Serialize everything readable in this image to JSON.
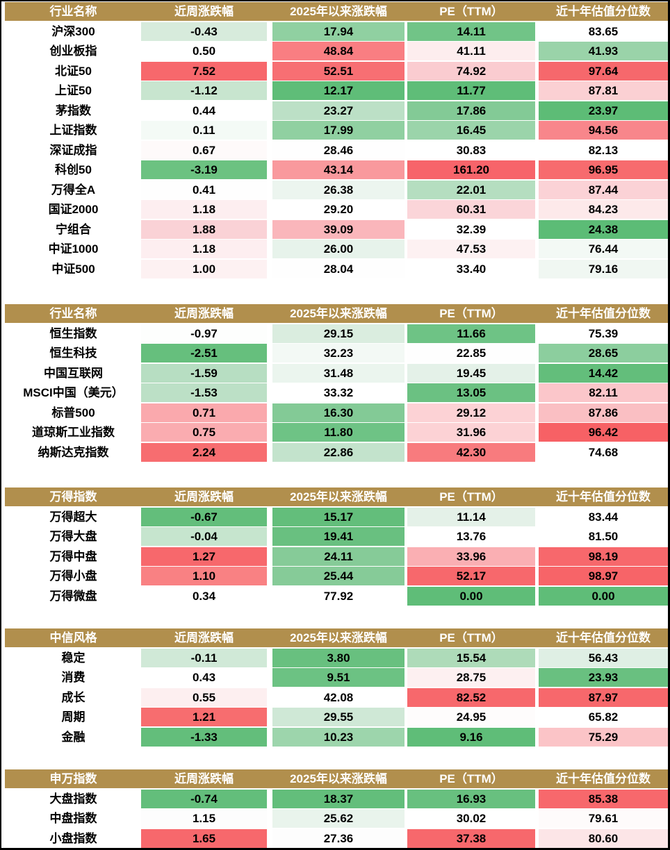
{
  "palette": {
    "header_bg": "#B18F4D",
    "header_text": "#FFFFFF",
    "body_text": "#000000",
    "border": "#000000",
    "heat_scale": {
      "low": "#63BE7B",
      "mid": "#FFFFFF",
      "high": "#F8696B"
    }
  },
  "value_columns": [
    "近周涨跌幅",
    "2025年以来涨跌幅",
    "PE（TTM）",
    "近十年估值分位数"
  ],
  "chart_data": [
    {
      "type": "table",
      "title": "行业名称",
      "columns": [
        "行业名称",
        "近周涨跌幅",
        "2025年以来涨跌幅",
        "PE（TTM）",
        "近十年估值分位数"
      ],
      "rows": [
        [
          "沪深300",
          -0.43,
          17.94,
          14.11,
          83.65
        ],
        [
          "创业板指",
          0.5,
          48.84,
          41.11,
          41.93
        ],
        [
          "北证50",
          7.52,
          52.51,
          74.92,
          97.64
        ],
        [
          "上证50",
          -1.12,
          12.17,
          11.77,
          87.81
        ],
        [
          "茅指数",
          0.44,
          23.27,
          17.86,
          23.97
        ],
        [
          "上证指数",
          0.11,
          17.99,
          16.45,
          94.56
        ],
        [
          "深证成指",
          0.67,
          28.46,
          30.83,
          82.13
        ],
        [
          "科创50",
          -3.19,
          43.14,
          161.2,
          96.95
        ],
        [
          "万得全A",
          0.41,
          26.38,
          22.01,
          87.44
        ],
        [
          "国证2000",
          1.18,
          29.2,
          60.31,
          84.23
        ],
        [
          "宁组合",
          1.88,
          39.09,
          32.39,
          24.38
        ],
        [
          "中证1000",
          1.18,
          26.0,
          47.53,
          76.44
        ],
        [
          "中证500",
          1.0,
          28.04,
          33.4,
          79.16
        ]
      ],
      "cell_colors": [
        [
          "#D7EBDC",
          "#90D0A1",
          "#71C487",
          "#FFFFFF"
        ],
        [
          "#FFFFFF",
          "#F97E82",
          "#FDEDEE",
          "#9AD3A9"
        ],
        [
          "#F7686C",
          "#F76F73",
          "#FACCD0",
          "#F6686C"
        ],
        [
          "#C8E5CF",
          "#5FBD78",
          "#5FBD78",
          "#FBD0D3"
        ],
        [
          "#FFFFFF",
          "#BCE0C6",
          "#83CA96",
          "#5DBC76"
        ],
        [
          "#F4FAF6",
          "#90D0A1",
          "#9BD4AA",
          "#F8868B"
        ],
        [
          "#FEFAFA",
          "#FEFEFE",
          "#FFFFFF",
          "#FFFFFF"
        ],
        [
          "#6CC281",
          "#F9999D",
          "#F7646A",
          "#F76B6E"
        ],
        [
          "#FEFEFE",
          "#ECF5EF",
          "#B5DEC0",
          "#FBD2D6"
        ],
        [
          "#FDEEF0",
          "#FFFFFF",
          "#FBD5D9",
          "#FDE9EA"
        ],
        [
          "#FAD2D6",
          "#FAB6BB",
          "#FFFFFF",
          "#5CBC76"
        ],
        [
          "#FDEEF0",
          "#E7F3EB",
          "#FDF1F2",
          "#F3F9F5"
        ],
        [
          "#FDF1F2",
          "#FEFEFE",
          "#FFFFFF",
          "#F0F7F2"
        ]
      ]
    },
    {
      "type": "table",
      "title": "行业名称",
      "columns": [
        "行业名称",
        "近周涨跌幅",
        "2025年以来涨跌幅",
        "PE（TTM）",
        "近十年估值分位数"
      ],
      "rows": [
        [
          "恒生指数",
          -0.97,
          29.15,
          11.66,
          75.39
        ],
        [
          "恒生科技",
          -2.51,
          32.23,
          22.85,
          28.65
        ],
        [
          "中国互联网",
          -1.59,
          31.48,
          19.45,
          14.42
        ],
        [
          "MSCI中国（美元）",
          -1.53,
          33.32,
          13.05,
          82.11
        ],
        [
          "标普500",
          0.71,
          16.3,
          29.12,
          87.86
        ],
        [
          "道琼斯工业指数",
          0.75,
          11.8,
          31.96,
          96.42
        ],
        [
          "纳斯达克指数",
          2.24,
          22.86,
          42.3,
          74.68
        ]
      ],
      "cell_colors": [
        [
          "#FDFEFD",
          "#DAEDDF",
          "#6EC385",
          "#FFFFFF"
        ],
        [
          "#66BF7D",
          "#F3F9F5",
          "#FEFEFE",
          "#8CCE9E"
        ],
        [
          "#B7DEC2",
          "#EBF5EE",
          "#E4F1E8",
          "#63BE7B"
        ],
        [
          "#BCE0C6",
          "#FFFFFF",
          "#6BC182",
          "#FBC6CA"
        ],
        [
          "#FAA9AD",
          "#83CA96",
          "#FCD2D5",
          "#FABFC3"
        ],
        [
          "#FAACB0",
          "#6EC385",
          "#FCD2D5",
          "#F76165"
        ],
        [
          "#F76D70",
          "#C3E3CC",
          "#F87B7E",
          "#FFFFFF"
        ]
      ]
    },
    {
      "type": "table",
      "title": "万得指数",
      "columns": [
        "万得指数",
        "近周涨跌幅",
        "2025年以来涨跌幅",
        "PE（TTM）",
        "近十年估值分位数"
      ],
      "rows": [
        [
          "万得超大",
          -0.67,
          15.17,
          11.14,
          83.44
        ],
        [
          "万得大盘",
          -0.04,
          19.41,
          13.76,
          81.5
        ],
        [
          "万得中盘",
          1.27,
          24.11,
          33.96,
          98.19
        ],
        [
          "万得小盘",
          1.1,
          25.44,
          52.17,
          98.97
        ],
        [
          "万得微盘",
          0.34,
          77.92,
          0.0,
          0.0
        ]
      ],
      "cell_colors": [
        [
          "#63BE7B",
          "#63BE7B",
          "#E4F1E8",
          "#FFFFFF"
        ],
        [
          "#C6E5CE",
          "#69C080",
          "#FFFFFF",
          "#FFFFFF"
        ],
        [
          "#F7686C",
          "#86CB98",
          "#FAAFB3",
          "#F7686C"
        ],
        [
          "#F98183",
          "#86CB98",
          "#F7686C",
          "#F76468"
        ],
        [
          "#FFFFFF",
          "#FFFFFF",
          "#5FBD78",
          "#5FBD78"
        ]
      ]
    },
    {
      "type": "table",
      "title": "中信风格",
      "columns": [
        "中信风格",
        "近周涨跌幅",
        "2025年以来涨跌幅",
        "PE（TTM）",
        "近十年估值分位数"
      ],
      "rows": [
        [
          "稳定",
          -0.11,
          3.8,
          15.54,
          56.43
        ],
        [
          "消费",
          0.43,
          9.51,
          28.75,
          23.93
        ],
        [
          "成长",
          0.55,
          42.08,
          82.52,
          87.97
        ],
        [
          "周期",
          1.21,
          29.55,
          24.95,
          65.82
        ],
        [
          "金融",
          -1.33,
          10.23,
          9.16,
          75.29
        ]
      ],
      "cell_colors": [
        [
          "#D0E9D7",
          "#68C07F",
          "#AEDBB9",
          "#DFEFE4"
        ],
        [
          "#FFFFFF",
          "#6CC283",
          "#FDF0F1",
          "#69C080"
        ],
        [
          "#FDEFF0",
          "#FFFFFF",
          "#F7686C",
          "#F7686C"
        ],
        [
          "#F76D6F",
          "#CFE8D6",
          "#FEFCFC",
          "#FFFFFF"
        ],
        [
          "#63BE7B",
          "#9DD5AC",
          "#5FBD78",
          "#FBC4C7"
        ]
      ]
    },
    {
      "type": "table",
      "title": "申万指数",
      "columns": [
        "申万指数",
        "近周涨跌幅",
        "2025年以来涨跌幅",
        "PE（TTM）",
        "近十年估值分位数"
      ],
      "rows": [
        [
          "大盘指数",
          -0.74,
          18.37,
          16.93,
          85.38
        ],
        [
          "中盘指数",
          1.15,
          25.62,
          30.02,
          79.61
        ],
        [
          "小盘指数",
          1.65,
          27.36,
          37.38,
          80.6
        ]
      ],
      "cell_colors": [
        [
          "#63BE7B",
          "#63BE7B",
          "#68C07F",
          "#F7686C"
        ],
        [
          "#FDFDFD",
          "#E9F4EC",
          "#FFFFFF",
          "#FEFBFB"
        ],
        [
          "#F7686C",
          "#FDFDFD",
          "#F7686C",
          "#FCE5E7"
        ]
      ]
    }
  ]
}
